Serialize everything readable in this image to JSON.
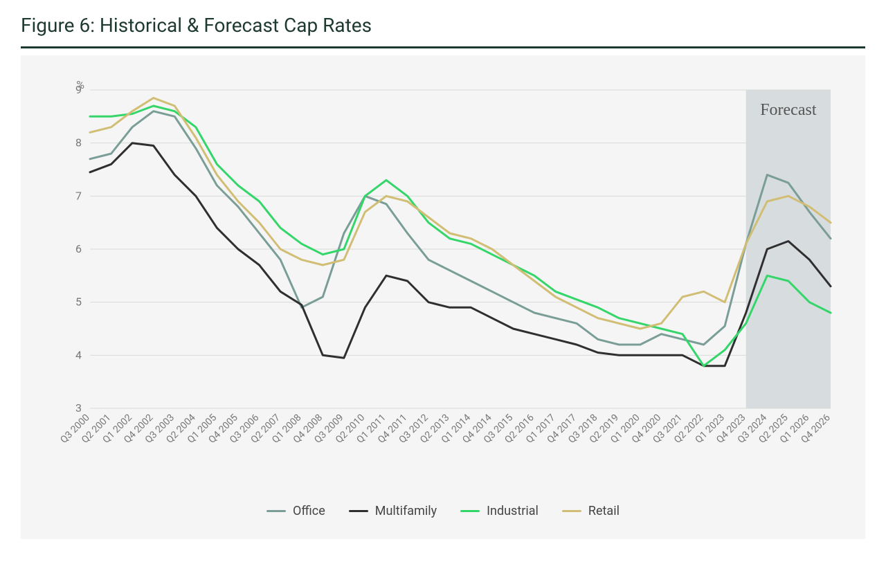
{
  "title": "Figure 6: Historical & Forecast Cap Rates",
  "chart": {
    "type": "line",
    "background_color": "#f4f5f4",
    "grid_color": "#d9dbd9",
    "axis_label_color": "#777777",
    "title_color": "#1e3a2f",
    "title_fontsize": 28,
    "rule_color": "#1e3a2f",
    "y_unit_label": "%",
    "ylim": [
      3,
      9
    ],
    "ytick_step": 1,
    "yticks": [
      3,
      4,
      5,
      6,
      7,
      8,
      9
    ],
    "x_labels": [
      "Q3 2000",
      "Q2 2001",
      "Q1 2002",
      "Q4 2002",
      "Q3 2003",
      "Q2 2004",
      "Q1 2005",
      "Q4 2005",
      "Q3 2006",
      "Q2 2007",
      "Q1 2008",
      "Q4 2008",
      "Q3 2009",
      "Q2 2010",
      "Q1 2011",
      "Q4 2011",
      "Q3 2012",
      "Q2 2013",
      "Q1 2014",
      "Q4 2014",
      "Q3 2015",
      "Q2 2016",
      "Q1 2017",
      "Q4 2017",
      "Q3 2018",
      "Q2 2019",
      "Q1 2020",
      "Q4 2020",
      "Q3 2021",
      "Q2 2022",
      "Q1 2023",
      "Q4 2023",
      "Q3 2024",
      "Q2 2025",
      "Q1 2026",
      "Q4 2026"
    ],
    "line_width": 3,
    "forecast_region": {
      "start_index": 31,
      "end_index": 35,
      "fill": "#d7dcdf",
      "label": "Forecast",
      "label_fontsize": 24,
      "label_color": "#555555"
    },
    "series": [
      {
        "name": "Office",
        "color": "#7a9e97",
        "values": [
          7.7,
          7.8,
          8.3,
          8.6,
          8.5,
          7.9,
          7.2,
          6.8,
          6.3,
          5.8,
          4.9,
          5.1,
          6.3,
          7.0,
          6.85,
          6.3,
          5.8,
          5.6,
          5.4,
          5.2,
          5.0,
          4.8,
          4.7,
          4.6,
          4.3,
          4.2,
          4.2,
          4.4,
          4.3,
          4.2,
          4.55,
          6.1,
          7.4,
          7.25,
          6.7,
          6.2
        ]
      },
      {
        "name": "Multifamily",
        "color": "#2f2f2f",
        "values": [
          7.45,
          7.6,
          8.0,
          7.95,
          7.4,
          7.0,
          6.4,
          6.0,
          5.7,
          5.2,
          4.95,
          4.0,
          3.95,
          4.9,
          5.5,
          5.4,
          5.0,
          4.9,
          4.9,
          4.7,
          4.5,
          4.4,
          4.3,
          4.2,
          4.05,
          4.0,
          4.0,
          4.0,
          4.0,
          3.8,
          3.8,
          4.8,
          6.0,
          6.15,
          5.8,
          5.3
        ]
      },
      {
        "name": "Industrial",
        "color": "#34d66a",
        "values": [
          8.5,
          8.5,
          8.55,
          8.7,
          8.6,
          8.3,
          7.6,
          7.2,
          6.9,
          6.4,
          6.1,
          5.9,
          6.0,
          7.0,
          7.3,
          7.0,
          6.5,
          6.2,
          6.1,
          5.9,
          5.7,
          5.5,
          5.2,
          5.05,
          4.9,
          4.7,
          4.6,
          4.5,
          4.4,
          3.8,
          4.1,
          4.6,
          5.5,
          5.4,
          5.0,
          4.8
        ]
      },
      {
        "name": "Retail",
        "color": "#d1bd74",
        "values": [
          8.2,
          8.3,
          8.6,
          8.85,
          8.7,
          8.1,
          7.4,
          6.9,
          6.5,
          6.0,
          5.8,
          5.7,
          5.8,
          6.7,
          7.0,
          6.9,
          6.6,
          6.3,
          6.2,
          6.0,
          5.7,
          5.4,
          5.1,
          4.9,
          4.7,
          4.6,
          4.5,
          4.6,
          5.1,
          5.2,
          5.0,
          6.1,
          6.9,
          7.0,
          6.8,
          6.5
        ]
      }
    ],
    "legend_fontsize": 18,
    "legend_text_color": "#444444",
    "x_tick_fontsize": 14,
    "y_tick_fontsize": 16
  }
}
